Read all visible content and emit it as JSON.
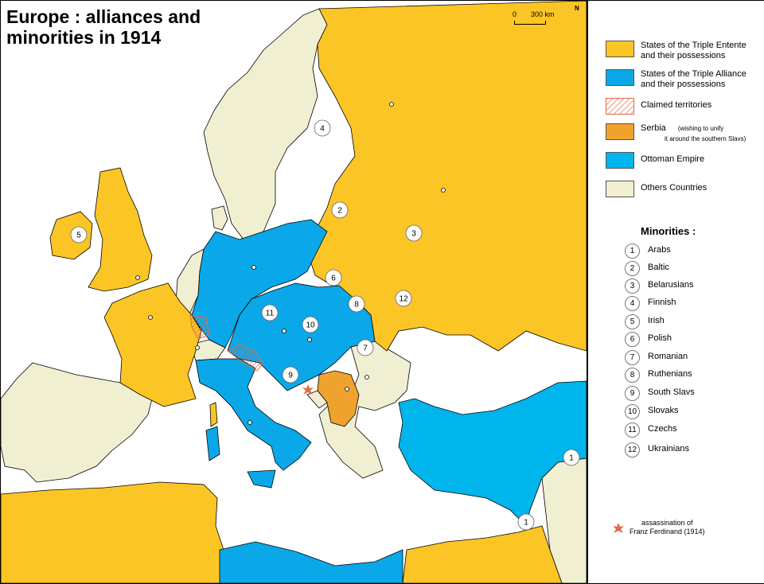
{
  "title": {
    "line1": "Europe : alliances and",
    "line2": "minorities in 1914"
  },
  "scale": {
    "zero": "0",
    "distance": "300 km"
  },
  "north_label": "N",
  "colors": {
    "entente": "#fcc526",
    "alliance": "#0aa8e8",
    "ottoman": "#00b4ec",
    "serbia": "#f0a22f",
    "others": "#f1efd2",
    "sea": "#ffffff",
    "claimed": "#e4684a"
  },
  "legend": [
    {
      "key": "entente",
      "line1": "States of the Triple Entente",
      "line2": "and their possessions",
      "color": "#fcc526"
    },
    {
      "key": "alliance",
      "line1": "States of the Triple Alliance",
      "line2": "and their possessions",
      "color": "#0aa8e8"
    },
    {
      "key": "claimed",
      "line1": "Claimed territories",
      "line2": "",
      "color": "#e4684a"
    },
    {
      "key": "serbia",
      "line1": "Serbia",
      "note1": "(wishing to unify",
      "note2": "it around the southern Slavs)",
      "color": "#f0a22f"
    },
    {
      "key": "ottoman",
      "line1": "Ottoman Empire",
      "line2": "",
      "color": "#00b4ec"
    },
    {
      "key": "others",
      "line1": "Others Countries",
      "line2": "",
      "color": "#f1efd2"
    }
  ],
  "minorities_title": "Minorities :",
  "minorities": [
    {
      "num": "1",
      "name": "Arabs"
    },
    {
      "num": "2",
      "name": "Baltic"
    },
    {
      "num": "3",
      "name": "Belarusians"
    },
    {
      "num": "4",
      "name": "Finnish"
    },
    {
      "num": "5",
      "name": "Irish"
    },
    {
      "num": "6",
      "name": "Polish"
    },
    {
      "num": "7",
      "name": "Romanian"
    },
    {
      "num": "8",
      "name": "Ruthenians"
    },
    {
      "num": "9",
      "name": "South Slavs"
    },
    {
      "num": "10",
      "name": "Slovaks"
    },
    {
      "num": "11",
      "name": "Czechs"
    },
    {
      "num": "12",
      "name": "Ukrainians"
    }
  ],
  "assassination": {
    "line1": "assassination of",
    "line2": "Franz Ferdinand (1914)"
  }
}
